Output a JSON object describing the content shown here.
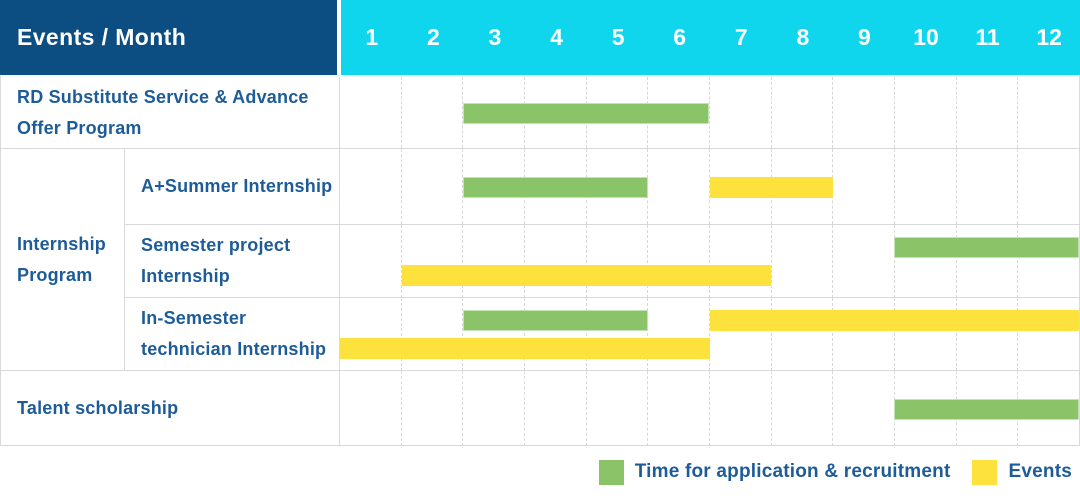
{
  "header": {
    "title": "Events / Month"
  },
  "colors": {
    "header_bg": "#0d4e82",
    "months_bg": "#0fd6ec",
    "label_text": "#1e5c99",
    "recruitment_green": "#8bc468",
    "event_yellow": "#fde23e",
    "border_gray": "#d9d9d9"
  },
  "legend": {
    "items": [
      {
        "key": "recruitment",
        "label": "Time for application & recruitment"
      },
      {
        "key": "event",
        "label": "Events"
      }
    ]
  },
  "chart_data": {
    "type": "bar",
    "variant": "gantt-timeline",
    "title": "Events / Month",
    "xlabel": "Month",
    "x_range": [
      1,
      12
    ],
    "months": [
      "1",
      "2",
      "3",
      "4",
      "5",
      "6",
      "7",
      "8",
      "9",
      "10",
      "11",
      "12"
    ],
    "grid": "dashed-vertical-month-lines",
    "legend_position": "bottom-right",
    "series_meaning": {
      "recruitment": "Time for application & recruitment",
      "event": "Events"
    },
    "group_label": "Internship Program",
    "rows": [
      {
        "label": "RD Substitute Service & Advance Offer Program",
        "group": "",
        "bars": [
          {
            "type": "recruitment",
            "start_month": 3,
            "end_month": 6,
            "lane": "single"
          }
        ]
      },
      {
        "label": "A+Summer Internship",
        "group": "Internship Program",
        "bars": [
          {
            "type": "recruitment",
            "start_month": 3,
            "end_month": 5,
            "lane": "single"
          },
          {
            "type": "event",
            "start_month": 7,
            "end_month": 8,
            "lane": "single"
          }
        ]
      },
      {
        "label": "Semester project Internship",
        "group": "Internship Program",
        "bars": [
          {
            "type": "recruitment",
            "start_month": 10,
            "end_month": 12,
            "lane": "top"
          },
          {
            "type": "event",
            "start_month": 2,
            "end_month": 7,
            "lane": "bottom"
          }
        ]
      },
      {
        "label": "In-Semester technician Internship",
        "group": "Internship Program",
        "bars": [
          {
            "type": "recruitment",
            "start_month": 3,
            "end_month": 5,
            "lane": "top"
          },
          {
            "type": "event",
            "start_month": 7,
            "end_month": 12,
            "lane": "top"
          },
          {
            "type": "event",
            "start_month": 1,
            "end_month": 6,
            "lane": "bottom"
          }
        ]
      },
      {
        "label": "Talent scholarship",
        "group": "",
        "bars": [
          {
            "type": "recruitment",
            "start_month": 10,
            "end_month": 12,
            "lane": "single"
          }
        ]
      }
    ]
  }
}
